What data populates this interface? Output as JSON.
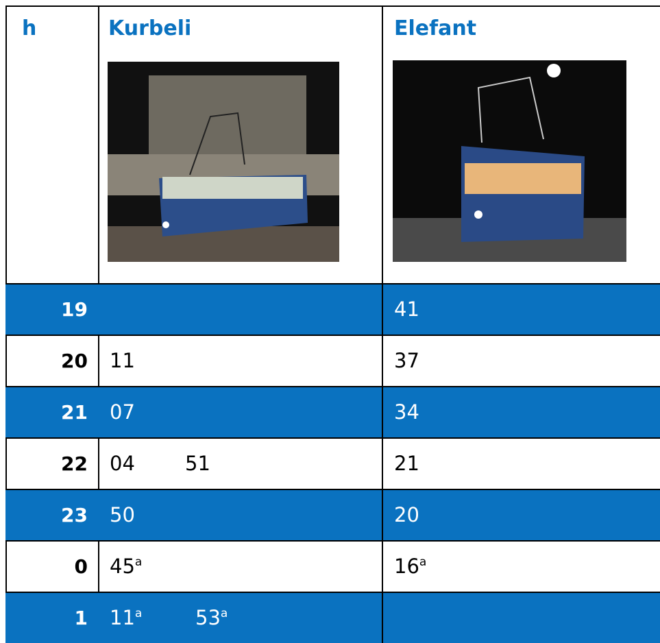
{
  "header": {
    "hour": "h",
    "columns": [
      "Kurbeli",
      "Elefant"
    ]
  },
  "rows": [
    {
      "hour": "19",
      "kurbeli": [],
      "elefant": [
        {
          "time": "41"
        }
      ]
    },
    {
      "hour": "20",
      "kurbeli": [
        {
          "time": "11"
        }
      ],
      "elefant": [
        {
          "time": "37"
        }
      ]
    },
    {
      "hour": "21",
      "kurbeli": [
        {
          "time": "07"
        }
      ],
      "elefant": [
        {
          "time": "34"
        }
      ]
    },
    {
      "hour": "22",
      "kurbeli": [
        {
          "time": "04"
        },
        {
          "time": "51"
        }
      ],
      "elefant": [
        {
          "time": "21"
        }
      ]
    },
    {
      "hour": "23",
      "kurbeli": [
        {
          "time": "50"
        }
      ],
      "elefant": [
        {
          "time": "20"
        }
      ]
    },
    {
      "hour": "0",
      "kurbeli": [
        {
          "time": "45",
          "note": "a"
        }
      ],
      "elefant": [
        {
          "time": "16",
          "note": "a"
        }
      ]
    },
    {
      "hour": "1",
      "kurbeli": [
        {
          "time": "11",
          "note": "a"
        },
        {
          "time": "53",
          "note": "a"
        }
      ],
      "elefant": []
    }
  ]
}
